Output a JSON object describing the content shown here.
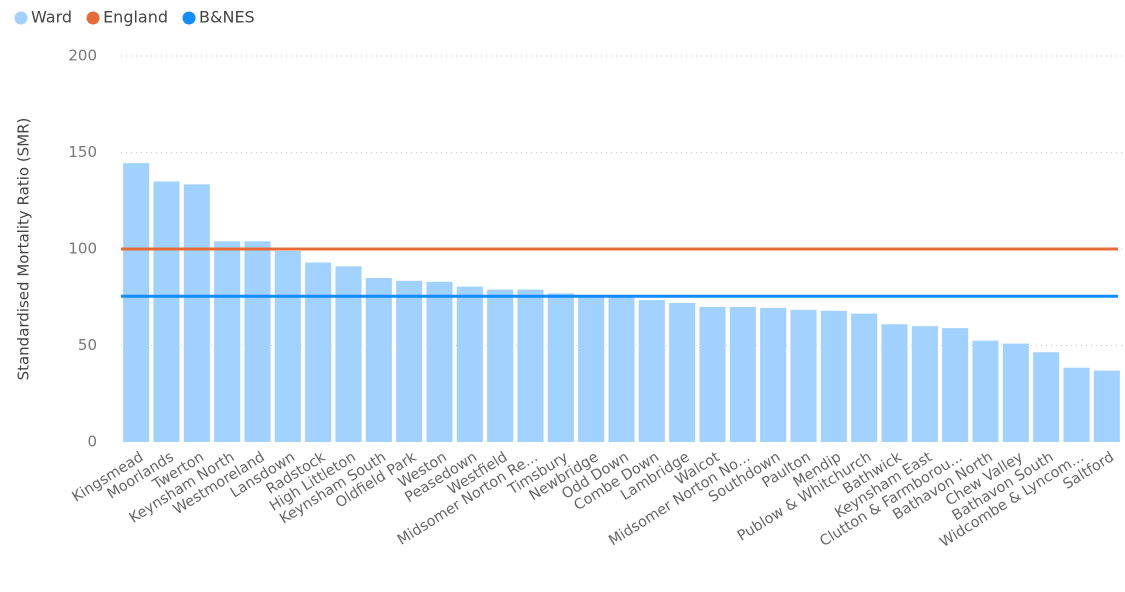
{
  "chart_data": {
    "type": "bar",
    "y_label": "Standardised Mortality Ratio (SMR)",
    "categories": [
      "Kingsmead",
      "Moorlands",
      "Twerton",
      "Keynsham North",
      "Westmoreland",
      "Lansdown",
      "Radstock",
      "High Littleton",
      "Keynsham South",
      "Oldfield Park",
      "Weston",
      "Peasedown",
      "Westfield",
      "Midsomer Norton Re...",
      "Timsbury",
      "Newbridge",
      "Odd Down",
      "Combe Down",
      "Lambridge",
      "Walcot",
      "Midsomer Norton No...",
      "Southdown",
      "Paulton",
      "Mendip",
      "Publow & Whitchurch",
      "Bathwick",
      "Keynsham East",
      "Clutton & Farmborou...",
      "Bathavon North",
      "Chew Valley",
      "Bathavon South",
      "Widcombe & Lyncom...",
      "Saltford"
    ],
    "series": [
      {
        "name": "Ward",
        "color": "#a0d1ff",
        "values": [
          144.5,
          135,
          133.5,
          104,
          104,
          99,
          93,
          91,
          85,
          83.5,
          83,
          80.5,
          79,
          79,
          77,
          76,
          75,
          73.5,
          72,
          70,
          70,
          69.5,
          68.5,
          68,
          66.5,
          61,
          60,
          59,
          52.5,
          51,
          46.5,
          38.5,
          37
        ]
      }
    ],
    "reference_lines": [
      {
        "name": "England",
        "color": "#e66c37",
        "value": 100
      },
      {
        "name": "B&NES",
        "color": "#118dff",
        "value": 75.5
      }
    ],
    "ylim": [
      0,
      200
    ],
    "yticks": [
      0,
      50,
      100,
      150,
      200
    ],
    "grid": true
  }
}
